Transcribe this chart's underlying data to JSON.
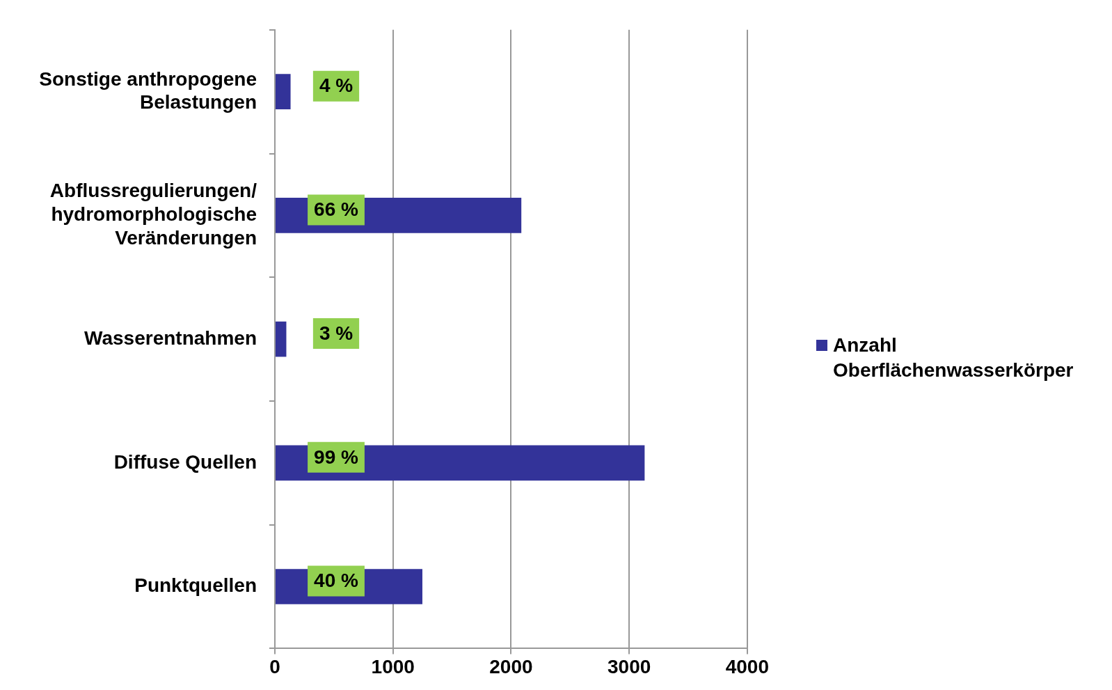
{
  "chart_data": {
    "type": "bar",
    "orientation": "horizontal",
    "categories": [
      "Sonstige anthropogene Belastungen",
      "Abflussregulierungen/ hydromorphologische Veränderungen",
      "Wasserentnahmen",
      "Diffuse Quellen",
      "Punktquellen"
    ],
    "series": [
      {
        "name": "Anzahl Oberflächenwasserkörper",
        "color": "#333399",
        "values": [
          133,
          2087,
          97,
          3131,
          1249
        ]
      }
    ],
    "annotations": [
      "4 %",
      "66 %",
      "3 %",
      "99 %",
      "40 %"
    ],
    "xlim": [
      0,
      4000
    ],
    "xticks": [
      0,
      1000,
      2000,
      3000,
      4000
    ],
    "grid": "x",
    "legend": "right"
  }
}
